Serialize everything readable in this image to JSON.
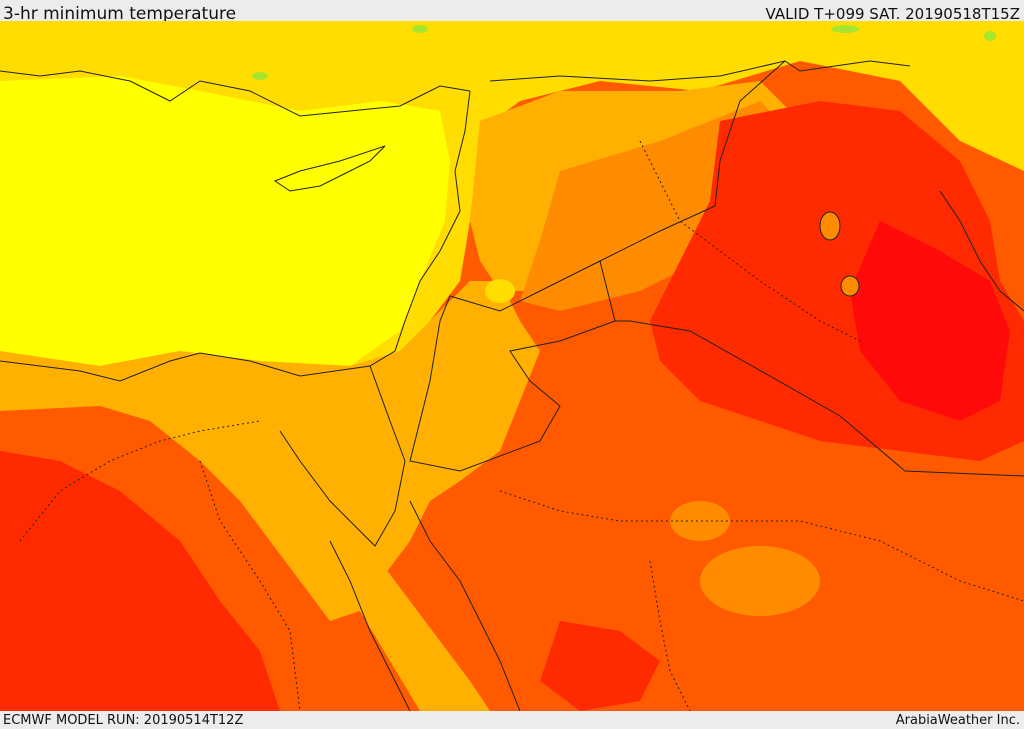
{
  "header": {
    "title": "3-hr minimum temperature",
    "valid": "VALID T+099 SAT. 20190518T15Z"
  },
  "footer": {
    "model_run": "ECMWF MODEL RUN: 20190514T12Z",
    "credit": "ArabiaWeather Inc."
  },
  "map": {
    "colors": {
      "pale_yellow": "#ffff00",
      "yellow": "#ffdd00",
      "amber": "#ffb000",
      "orange": "#ff8c00",
      "orange_red": "#ff5a00",
      "red": "#ff2a00",
      "deep_red": "#ff0a0a",
      "green": "#a6e62e"
    }
  }
}
